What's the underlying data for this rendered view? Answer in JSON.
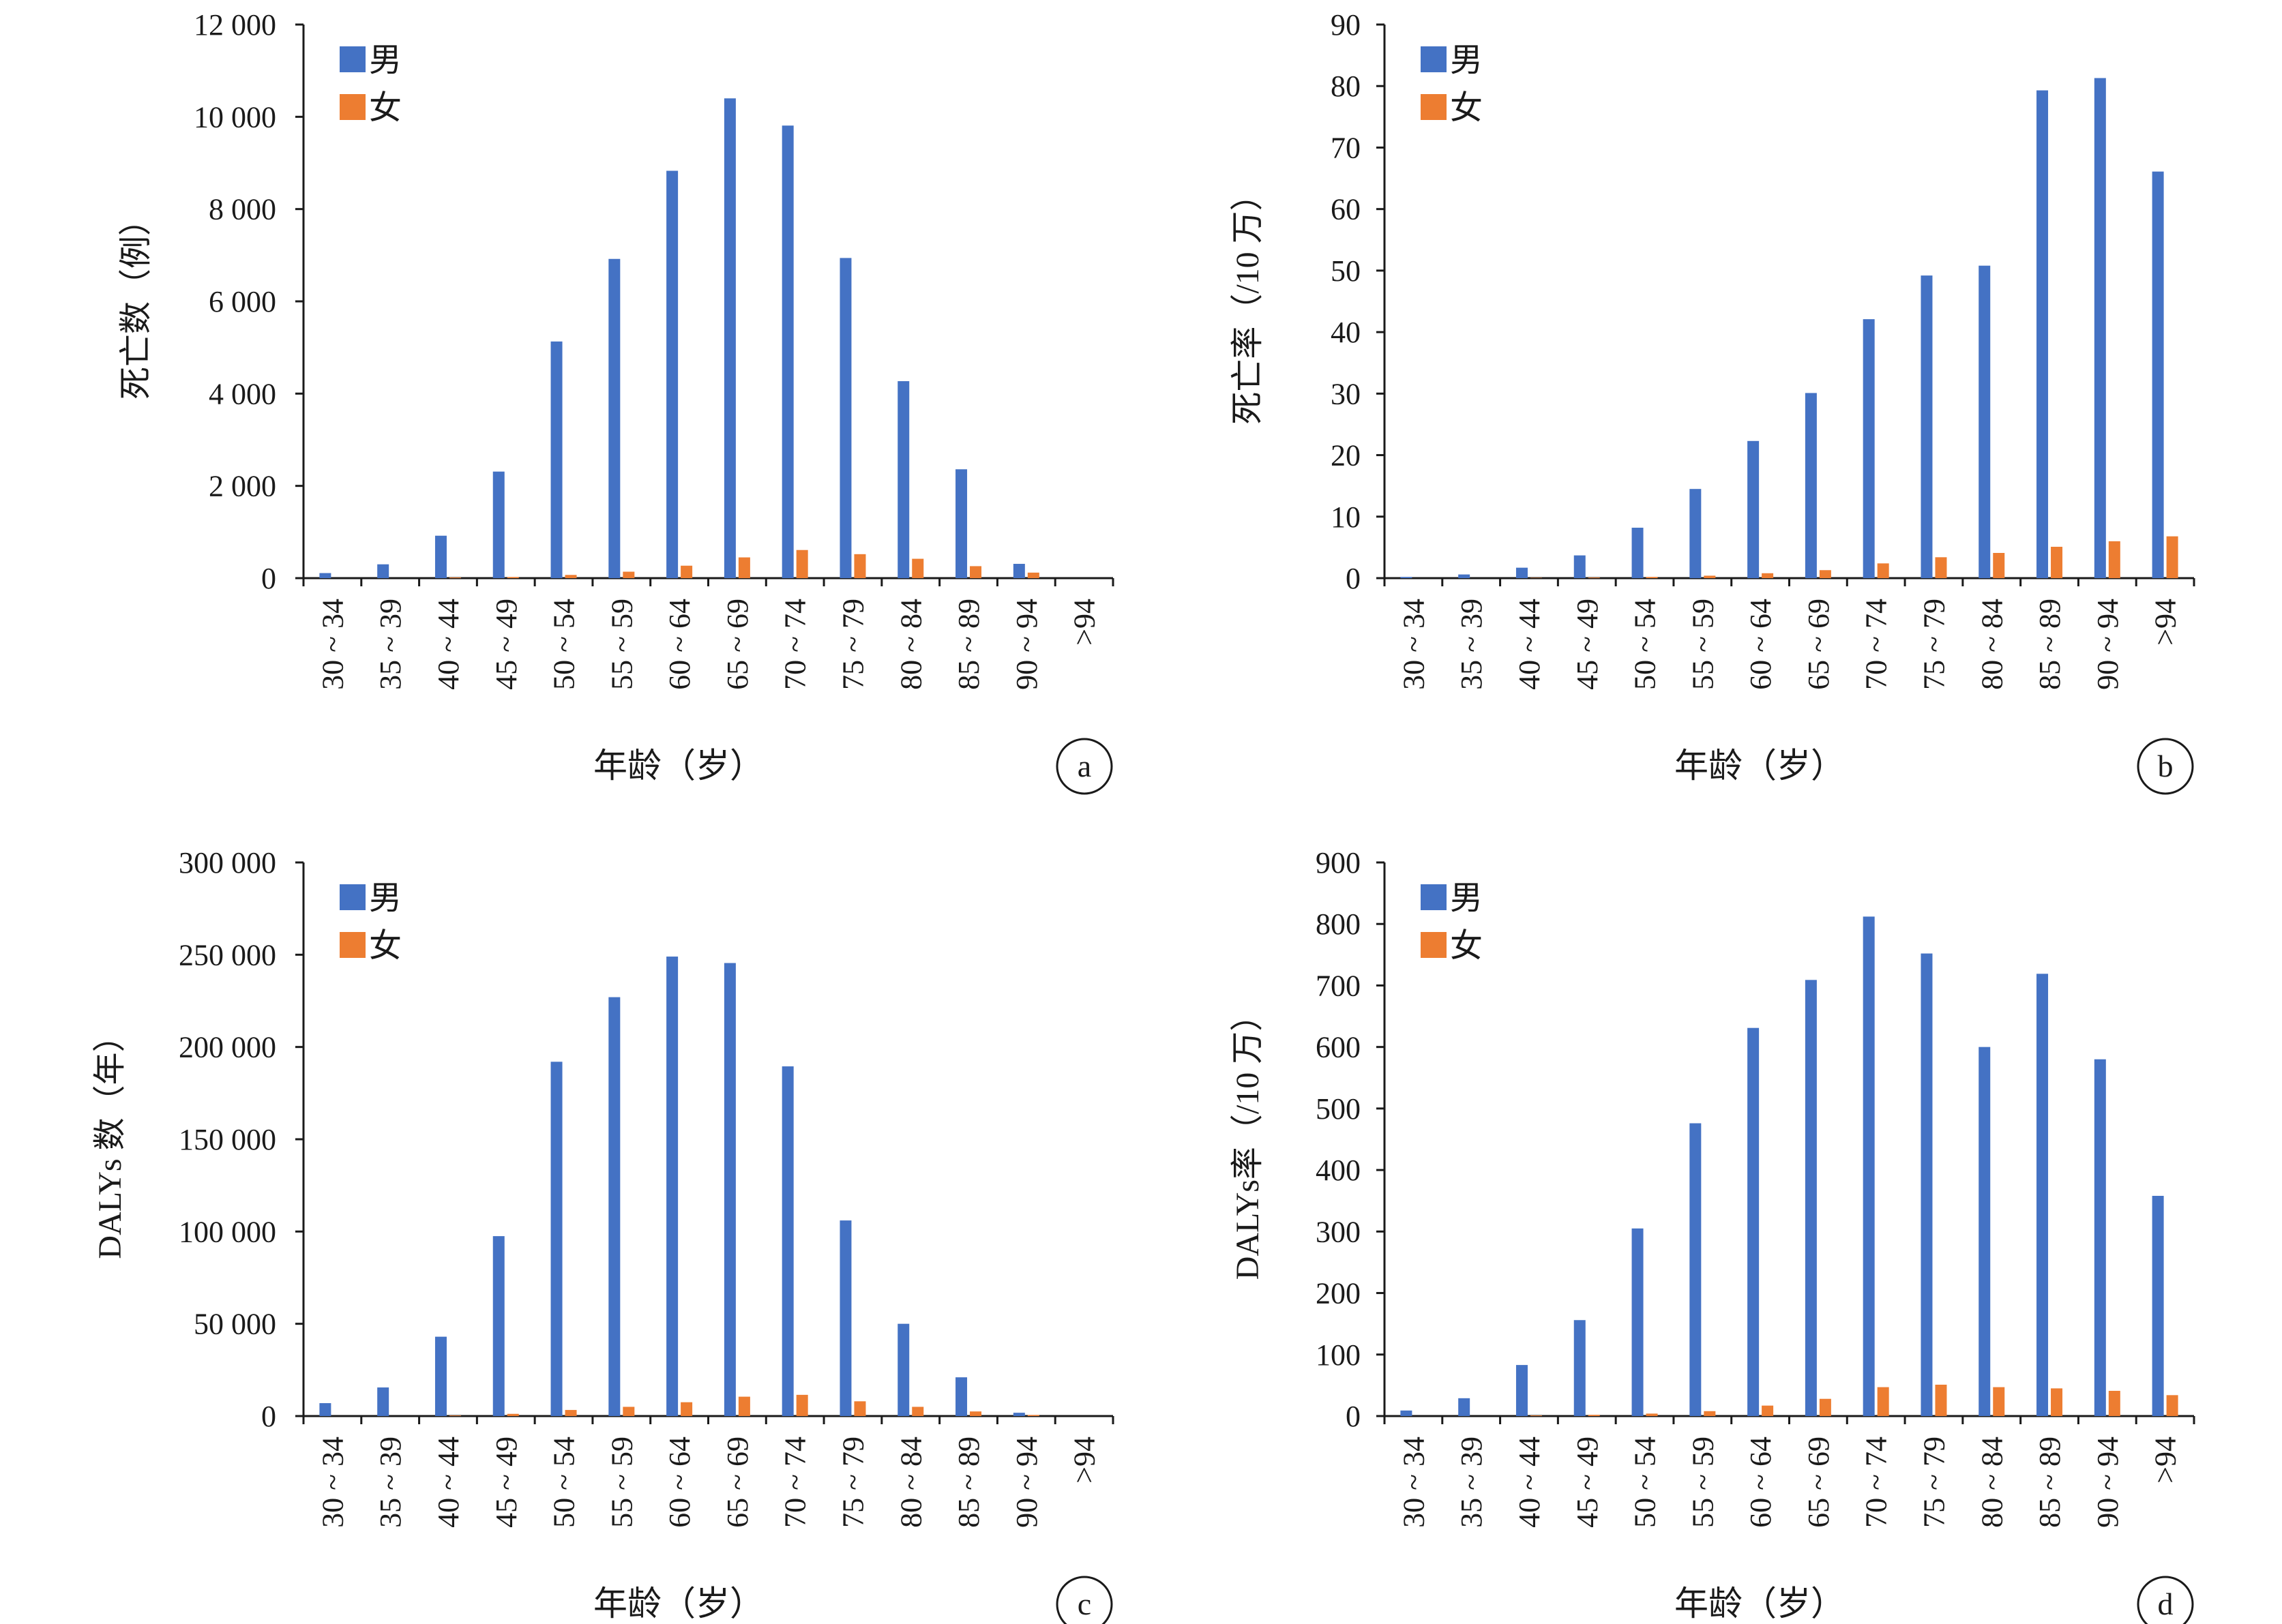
{
  "colors": {
    "male": "#4472C4",
    "female": "#ED7D31",
    "axis": "#1a1a1a"
  },
  "chart_data": [
    {
      "type": "bar",
      "panel": "a",
      "xlabel": "年龄（岁）",
      "ylabel": "死亡数（例）",
      "ylim": [
        0,
        12000
      ],
      "yticks": [
        0,
        2000,
        4000,
        6000,
        8000,
        10000,
        12000
      ],
      "ytick_labels": [
        "0",
        "2 000",
        "4 000",
        "6 000",
        "8 000",
        "10 000",
        "12 000"
      ],
      "categories": [
        "30 ~ 34",
        "35 ~ 39",
        "40 ~ 44",
        "45 ~ 49",
        "50 ~ 54",
        "55 ~ 59",
        "60 ~ 64",
        "65 ~ 69",
        "70 ~ 74",
        "75 ~ 79",
        "80 ~ 84",
        "85 ~ 89",
        "90 ~ 94",
        ">94"
      ],
      "legend": "top-left",
      "grid": false,
      "series": [
        {
          "name": "男",
          "values": [
            110,
            300,
            920,
            2310,
            5130,
            6920,
            8830,
            10400,
            9810,
            6940,
            4270,
            2360,
            310,
            0
          ]
        },
        {
          "name": "女",
          "values": [
            0,
            0,
            15,
            25,
            70,
            140,
            270,
            450,
            610,
            520,
            420,
            260,
            120,
            0
          ]
        }
      ]
    },
    {
      "type": "bar",
      "panel": "b",
      "xlabel": "年龄（岁）",
      "ylabel": "死亡率（/10 万）",
      "ylim": [
        0,
        90
      ],
      "yticks": [
        0,
        10,
        20,
        30,
        40,
        50,
        60,
        70,
        80,
        90
      ],
      "ytick_labels": [
        "0",
        "10",
        "20",
        "30",
        "40",
        "50",
        "60",
        "70",
        "80",
        "90"
      ],
      "categories": [
        "30 ~ 34",
        "35 ~ 39",
        "40 ~ 44",
        "45 ~ 49",
        "50 ~ 54",
        "55 ~ 59",
        "60 ~ 64",
        "65 ~ 69",
        "70 ~ 74",
        "75 ~ 79",
        "80 ~ 84",
        "85 ~ 89",
        "90 ~ 94",
        ">94"
      ],
      "legend": "top-left",
      "grid": false,
      "series": [
        {
          "name": "男",
          "values": [
            0.2,
            0.6,
            1.7,
            3.7,
            8.2,
            14.5,
            22.3,
            30.1,
            42.1,
            49.2,
            50.8,
            79.3,
            81.3,
            66.1
          ]
        },
        {
          "name": "女",
          "values": [
            0,
            0,
            0.05,
            0.1,
            0.2,
            0.4,
            0.8,
            1.3,
            2.4,
            3.4,
            4.1,
            5.1,
            6.0,
            6.8
          ]
        }
      ]
    },
    {
      "type": "bar",
      "panel": "c",
      "xlabel": "年龄（岁）",
      "ylabel": "DALYs 数（年）",
      "ylim": [
        0,
        300000
      ],
      "yticks": [
        0,
        50000,
        100000,
        150000,
        200000,
        250000,
        300000
      ],
      "ytick_labels": [
        "0",
        "50 000",
        "100 000",
        "150 000",
        "200 000",
        "250 000",
        "300 000"
      ],
      "categories": [
        "30 ~ 34",
        "35 ~ 39",
        "40 ~ 44",
        "45 ~ 49",
        "50 ~ 54",
        "55 ~ 59",
        "60 ~ 64",
        "65 ~ 69",
        "70 ~ 74",
        "75 ~ 79",
        "80 ~ 84",
        "85 ~ 89",
        "90 ~ 94",
        ">94"
      ],
      "legend": "top-left",
      "grid": false,
      "series": [
        {
          "name": "男",
          "values": [
            7000,
            15500,
            43000,
            97500,
            192000,
            227000,
            249000,
            245500,
            189500,
            106000,
            50000,
            21000,
            1800,
            0
          ]
        },
        {
          "name": "女",
          "values": [
            0,
            0,
            300,
            1200,
            3300,
            5000,
            7500,
            10500,
            11500,
            8000,
            5000,
            2500,
            600,
            0
          ]
        }
      ]
    },
    {
      "type": "bar",
      "panel": "d",
      "xlabel": "年龄（岁）",
      "ylabel": "DALYs率（/10 万）",
      "ylim": [
        0,
        900
      ],
      "yticks": [
        0,
        100,
        200,
        300,
        400,
        500,
        600,
        700,
        800,
        900
      ],
      "ytick_labels": [
        "0",
        "100",
        "200",
        "300",
        "400",
        "500",
        "600",
        "700",
        "800",
        "900"
      ],
      "categories": [
        "30 ~ 34",
        "35 ~ 39",
        "40 ~ 44",
        "45 ~ 49",
        "50 ~ 54",
        "55 ~ 59",
        "60 ~ 64",
        "65 ~ 69",
        "70 ~ 74",
        "75 ~ 79",
        "80 ~ 84",
        "85 ~ 89",
        "90 ~ 94",
        ">94"
      ],
      "legend": "top-left",
      "grid": false,
      "series": [
        {
          "name": "男",
          "values": [
            9,
            29,
            83,
            156,
            305,
            476,
            631,
            709,
            812,
            752,
            600,
            719,
            580,
            358
          ]
        },
        {
          "name": "女",
          "values": [
            0,
            0,
            1,
            2,
            4,
            8,
            17,
            28,
            47,
            51,
            47,
            45,
            41,
            34
          ]
        }
      ]
    }
  ]
}
